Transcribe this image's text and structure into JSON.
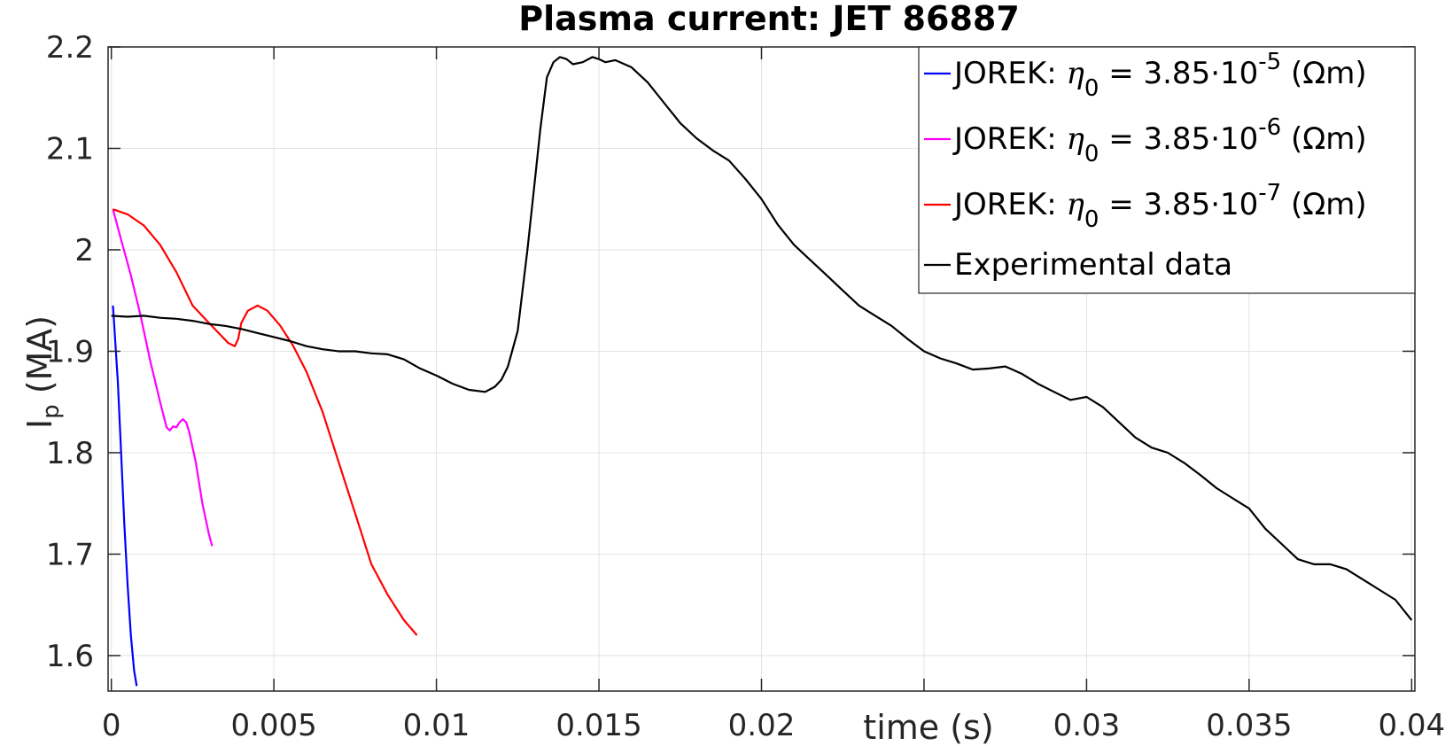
{
  "chart_data": {
    "type": "line",
    "title": "Plasma current: JET 86887",
    "xlabel": "time (s)",
    "ylabel": {
      "main": "I",
      "sub": "p",
      "rest": " (MA)"
    },
    "xlim": [
      -0.0001,
      0.0401
    ],
    "ylim": [
      1.565,
      2.2
    ],
    "xticks": [
      0,
      0.005,
      0.01,
      0.015,
      0.02,
      0.025,
      0.03,
      0.035,
      0.04
    ],
    "xtick_labels": [
      "0",
      "0.005",
      "0.01",
      "0.015",
      "0.02",
      "",
      "0.03",
      "0.035",
      "0.04"
    ],
    "yticks": [
      1.6,
      1.7,
      1.8,
      1.9,
      2.0,
      2.1,
      2.2
    ],
    "ytick_labels": [
      "1.6",
      "1.7",
      "1.8",
      "1.9",
      "2",
      "2.1",
      "2.2"
    ],
    "grid": true,
    "legend_position": "top-right",
    "series": [
      {
        "legend": {
          "prefix": "JOREK: ",
          "symbol": "η",
          "symbol_sub": "0",
          "middle": " = 3.85·10",
          "exp": "-5",
          "suffix": " (Ωm)"
        },
        "color": "#0000ff",
        "x": [
          5e-05,
          0.0002,
          0.0003,
          0.0004,
          0.0005,
          0.0006,
          0.0007,
          0.00078
        ],
        "y": [
          1.945,
          1.87,
          1.8,
          1.73,
          1.67,
          1.62,
          1.585,
          1.57
        ]
      },
      {
        "legend": {
          "prefix": "JOREK: ",
          "symbol": "η",
          "symbol_sub": "0",
          "middle": " = 3.85·10",
          "exp": "-6",
          "suffix": " (Ωm)"
        },
        "color": "#ff00ff",
        "x": [
          5e-05,
          0.0003,
          0.0006,
          0.0009,
          0.0012,
          0.0015,
          0.0017,
          0.0018,
          0.0019,
          0.002,
          0.0021,
          0.0022,
          0.0023,
          0.0024,
          0.0026,
          0.0028,
          0.003,
          0.0031
        ],
        "y": [
          2.04,
          2.01,
          1.975,
          1.935,
          1.89,
          1.85,
          1.825,
          1.822,
          1.826,
          1.825,
          1.83,
          1.833,
          1.83,
          1.82,
          1.79,
          1.75,
          1.72,
          1.708
        ]
      },
      {
        "legend": {
          "prefix": "JOREK: ",
          "symbol": "η",
          "symbol_sub": "0",
          "middle": " = 3.85·10",
          "exp": "-7",
          "suffix": " (Ωm)"
        },
        "color": "#ff0000",
        "x": [
          5e-05,
          0.0005,
          0.001,
          0.0015,
          0.002,
          0.0025,
          0.003,
          0.0033,
          0.0036,
          0.0038,
          0.0039,
          0.004,
          0.0042,
          0.0045,
          0.0048,
          0.0052,
          0.0056,
          0.006,
          0.0065,
          0.007,
          0.0075,
          0.008,
          0.0085,
          0.009,
          0.0094
        ],
        "y": [
          2.04,
          2.035,
          2.024,
          2.005,
          1.978,
          1.945,
          1.928,
          1.918,
          1.908,
          1.905,
          1.912,
          1.928,
          1.94,
          1.945,
          1.94,
          1.925,
          1.905,
          1.88,
          1.84,
          1.79,
          1.74,
          1.69,
          1.66,
          1.635,
          1.62
        ]
      },
      {
        "legend": {
          "prefix": "",
          "symbol": "",
          "symbol_sub": "",
          "middle": "Experimental data",
          "exp": "",
          "suffix": ""
        },
        "color": "#000000",
        "x": [
          0,
          0.0005,
          0.001,
          0.0015,
          0.002,
          0.0025,
          0.003,
          0.0035,
          0.004,
          0.0045,
          0.005,
          0.0055,
          0.006,
          0.0065,
          0.007,
          0.0075,
          0.008,
          0.0085,
          0.009,
          0.0095,
          0.01,
          0.0105,
          0.011,
          0.0115,
          0.0118,
          0.012,
          0.0122,
          0.0125,
          0.0128,
          0.013,
          0.0132,
          0.0134,
          0.0136,
          0.0138,
          0.014,
          0.0142,
          0.0145,
          0.0148,
          0.015,
          0.0152,
          0.0155,
          0.016,
          0.0165,
          0.017,
          0.0175,
          0.018,
          0.0185,
          0.019,
          0.0195,
          0.02,
          0.0205,
          0.021,
          0.0215,
          0.022,
          0.0225,
          0.023,
          0.0235,
          0.024,
          0.0245,
          0.025,
          0.0255,
          0.026,
          0.0265,
          0.027,
          0.0275,
          0.028,
          0.0285,
          0.029,
          0.0295,
          0.03,
          0.0305,
          0.031,
          0.0315,
          0.032,
          0.0325,
          0.033,
          0.0335,
          0.034,
          0.0345,
          0.035,
          0.0355,
          0.036,
          0.0365,
          0.037,
          0.0375,
          0.038,
          0.0385,
          0.039,
          0.0395,
          0.04
        ],
        "y": [
          1.935,
          1.934,
          1.935,
          1.933,
          1.932,
          1.93,
          1.927,
          1.925,
          1.922,
          1.918,
          1.914,
          1.91,
          1.905,
          1.902,
          1.9,
          1.9,
          1.898,
          1.897,
          1.892,
          1.883,
          1.876,
          1.868,
          1.862,
          1.86,
          1.865,
          1.872,
          1.885,
          1.92,
          2.0,
          2.06,
          2.12,
          2.17,
          2.185,
          2.19,
          2.188,
          2.183,
          2.185,
          2.19,
          2.188,
          2.185,
          2.187,
          2.18,
          2.165,
          2.145,
          2.125,
          2.11,
          2.098,
          2.088,
          2.07,
          2.05,
          2.025,
          2.005,
          1.99,
          1.975,
          1.96,
          1.945,
          1.935,
          1.925,
          1.912,
          1.9,
          1.893,
          1.888,
          1.882,
          1.883,
          1.885,
          1.878,
          1.868,
          1.86,
          1.852,
          1.855,
          1.845,
          1.83,
          1.815,
          1.805,
          1.8,
          1.79,
          1.778,
          1.765,
          1.755,
          1.745,
          1.725,
          1.71,
          1.695,
          1.69,
          1.69,
          1.685,
          1.675,
          1.665,
          1.655,
          1.635
        ]
      }
    ]
  }
}
